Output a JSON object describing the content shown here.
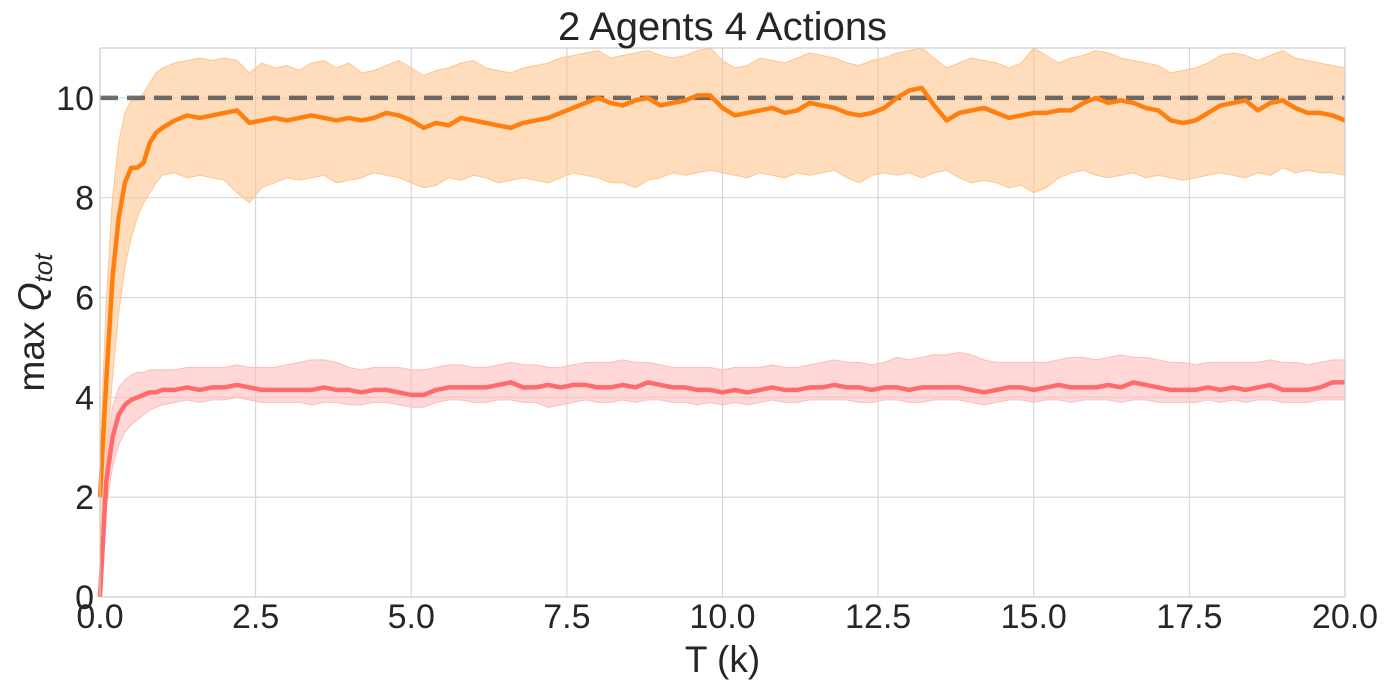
{
  "chart_data": {
    "type": "line",
    "title": "2 Agents 4 Actions",
    "xlabel": "T (k)",
    "ylabel_prefix": "max ",
    "ylabel_symbol": "Q",
    "ylabel_subscript": "tot",
    "xlim": [
      0,
      20
    ],
    "ylim": [
      0,
      11
    ],
    "xticks": [
      0,
      2.5,
      5,
      7.5,
      10,
      12.5,
      15,
      17.5,
      20
    ],
    "xtick_labels": [
      "0.0",
      "2.5",
      "5.0",
      "7.5",
      "10.0",
      "12.5",
      "15.0",
      "17.5",
      "20.0"
    ],
    "yticks": [
      0,
      2,
      4,
      6,
      8,
      10
    ],
    "ytick_labels": [
      "0",
      "2",
      "4",
      "6",
      "8",
      "10"
    ],
    "grid": true,
    "reference_line": {
      "y": 10,
      "style": "dashed",
      "color": "#555555"
    },
    "series": [
      {
        "color": "#ff7f0e",
        "band_color": "#ffc58f",
        "x": [
          0,
          0.1,
          0.2,
          0.3,
          0.4,
          0.5,
          0.6,
          0.7,
          0.8,
          0.9,
          1.0,
          1.2,
          1.4,
          1.6,
          1.8,
          2.0,
          2.2,
          2.4,
          2.6,
          2.8,
          3.0,
          3.2,
          3.4,
          3.6,
          3.8,
          4.0,
          4.2,
          4.4,
          4.6,
          4.8,
          5.0,
          5.2,
          5.4,
          5.6,
          5.8,
          6.0,
          6.2,
          6.4,
          6.6,
          6.8,
          7.0,
          7.2,
          7.4,
          7.6,
          7.8,
          8.0,
          8.2,
          8.4,
          8.6,
          8.8,
          9.0,
          9.2,
          9.4,
          9.6,
          9.8,
          10.0,
          10.2,
          10.4,
          10.6,
          10.8,
          11.0,
          11.2,
          11.4,
          11.6,
          11.8,
          12.0,
          12.2,
          12.4,
          12.6,
          12.8,
          13.0,
          13.2,
          13.4,
          13.6,
          13.8,
          14.0,
          14.2,
          14.4,
          14.6,
          14.8,
          15.0,
          15.2,
          15.4,
          15.6,
          15.8,
          16.0,
          16.2,
          16.4,
          16.6,
          16.8,
          17.0,
          17.2,
          17.4,
          17.6,
          17.8,
          18.0,
          18.2,
          18.4,
          18.6,
          18.8,
          19.0,
          19.2,
          19.4,
          19.6,
          19.8,
          20.0
        ],
        "mean": [
          2.0,
          4.3,
          6.4,
          7.6,
          8.3,
          8.6,
          8.6,
          8.7,
          9.1,
          9.3,
          9.4,
          9.55,
          9.65,
          9.6,
          9.65,
          9.7,
          9.75,
          9.5,
          9.55,
          9.6,
          9.55,
          9.6,
          9.65,
          9.6,
          9.55,
          9.6,
          9.55,
          9.6,
          9.7,
          9.65,
          9.55,
          9.4,
          9.5,
          9.45,
          9.6,
          9.55,
          9.5,
          9.45,
          9.4,
          9.5,
          9.55,
          9.6,
          9.7,
          9.8,
          9.9,
          10.0,
          9.9,
          9.85,
          9.95,
          10.0,
          9.85,
          9.9,
          9.95,
          10.05,
          10.05,
          9.8,
          9.65,
          9.7,
          9.75,
          9.8,
          9.7,
          9.75,
          9.9,
          9.85,
          9.8,
          9.7,
          9.65,
          9.7,
          9.8,
          10.0,
          10.15,
          10.2,
          9.85,
          9.55,
          9.7,
          9.75,
          9.8,
          9.7,
          9.6,
          9.65,
          9.7,
          9.7,
          9.75,
          9.75,
          9.9,
          10.0,
          9.9,
          9.95,
          9.9,
          9.8,
          9.75,
          9.55,
          9.5,
          9.55,
          9.7,
          9.85,
          9.9,
          9.95,
          9.75,
          9.9,
          9.95,
          9.8,
          9.7,
          9.7,
          9.65,
          9.55
        ],
        "lower": [
          1.2,
          2.7,
          4.4,
          5.7,
          6.6,
          7.2,
          7.6,
          7.9,
          8.1,
          8.3,
          8.45,
          8.5,
          8.4,
          8.45,
          8.4,
          8.35,
          8.1,
          7.9,
          8.2,
          8.3,
          8.4,
          8.35,
          8.4,
          8.45,
          8.3,
          8.35,
          8.4,
          8.5,
          8.45,
          8.4,
          8.3,
          8.2,
          8.25,
          8.4,
          8.35,
          8.45,
          8.4,
          8.3,
          8.35,
          8.4,
          8.35,
          8.3,
          8.4,
          8.5,
          8.45,
          8.4,
          8.3,
          8.3,
          8.2,
          8.35,
          8.4,
          8.5,
          8.45,
          8.5,
          8.55,
          8.5,
          8.45,
          8.4,
          8.5,
          8.45,
          8.4,
          8.5,
          8.45,
          8.5,
          8.55,
          8.4,
          8.3,
          8.45,
          8.5,
          8.45,
          8.5,
          8.4,
          8.5,
          8.55,
          8.4,
          8.3,
          8.35,
          8.3,
          8.2,
          8.25,
          8.1,
          8.2,
          8.4,
          8.5,
          8.55,
          8.45,
          8.4,
          8.45,
          8.5,
          8.4,
          8.45,
          8.4,
          8.35,
          8.4,
          8.45,
          8.5,
          8.45,
          8.4,
          8.5,
          8.45,
          8.6,
          8.5,
          8.55,
          8.5,
          8.5,
          8.45
        ],
        "upper": [
          2.8,
          5.9,
          8.0,
          9.1,
          9.7,
          9.95,
          9.95,
          10.1,
          10.3,
          10.5,
          10.6,
          10.7,
          10.75,
          10.8,
          10.75,
          10.8,
          10.75,
          10.5,
          10.7,
          10.6,
          10.65,
          10.55,
          10.7,
          10.75,
          10.6,
          10.7,
          10.5,
          10.55,
          10.65,
          10.75,
          10.6,
          10.45,
          10.55,
          10.6,
          10.7,
          10.75,
          10.6,
          10.55,
          10.5,
          10.6,
          10.65,
          10.7,
          10.8,
          10.85,
          10.9,
          10.95,
          10.8,
          10.85,
          10.9,
          10.95,
          10.85,
          10.8,
          10.85,
          10.95,
          11.0,
          10.75,
          10.6,
          10.65,
          10.8,
          10.75,
          10.7,
          10.8,
          10.9,
          10.85,
          10.8,
          10.7,
          10.65,
          10.75,
          10.8,
          10.9,
          10.95,
          11.0,
          10.8,
          10.6,
          10.7,
          10.8,
          10.75,
          10.7,
          10.6,
          10.7,
          11.0,
          10.85,
          10.7,
          10.8,
          10.85,
          10.95,
          10.9,
          10.8,
          10.75,
          10.7,
          10.65,
          10.5,
          10.55,
          10.6,
          10.7,
          10.85,
          10.9,
          10.85,
          10.75,
          10.85,
          10.95,
          10.8,
          10.75,
          10.7,
          10.65,
          10.6
        ]
      },
      {
        "color": "#ff6b6b",
        "band_color": "#ffbcbc",
        "x": [
          0,
          0.1,
          0.2,
          0.3,
          0.4,
          0.5,
          0.6,
          0.7,
          0.8,
          0.9,
          1.0,
          1.2,
          1.4,
          1.6,
          1.8,
          2.0,
          2.2,
          2.4,
          2.6,
          2.8,
          3.0,
          3.2,
          3.4,
          3.6,
          3.8,
          4.0,
          4.2,
          4.4,
          4.6,
          4.8,
          5.0,
          5.2,
          5.4,
          5.6,
          5.8,
          6.0,
          6.2,
          6.4,
          6.6,
          6.8,
          7.0,
          7.2,
          7.4,
          7.6,
          7.8,
          8.0,
          8.2,
          8.4,
          8.6,
          8.8,
          9.0,
          9.2,
          9.4,
          9.6,
          9.8,
          10.0,
          10.2,
          10.4,
          10.6,
          10.8,
          11.0,
          11.2,
          11.4,
          11.6,
          11.8,
          12.0,
          12.2,
          12.4,
          12.6,
          12.8,
          13.0,
          13.2,
          13.4,
          13.6,
          13.8,
          14.0,
          14.2,
          14.4,
          14.6,
          14.8,
          15.0,
          15.2,
          15.4,
          15.6,
          15.8,
          16.0,
          16.2,
          16.4,
          16.6,
          16.8,
          17.0,
          17.2,
          17.4,
          17.6,
          17.8,
          18.0,
          18.2,
          18.4,
          18.6,
          18.8,
          19.0,
          19.2,
          19.4,
          19.6,
          19.8,
          20.0
        ],
        "mean": [
          0.0,
          2.3,
          3.2,
          3.65,
          3.85,
          3.95,
          4.0,
          4.05,
          4.1,
          4.1,
          4.15,
          4.15,
          4.2,
          4.15,
          4.2,
          4.2,
          4.25,
          4.2,
          4.15,
          4.15,
          4.15,
          4.15,
          4.15,
          4.2,
          4.15,
          4.15,
          4.1,
          4.15,
          4.15,
          4.1,
          4.05,
          4.05,
          4.15,
          4.2,
          4.2,
          4.2,
          4.2,
          4.25,
          4.3,
          4.2,
          4.2,
          4.25,
          4.2,
          4.25,
          4.25,
          4.2,
          4.2,
          4.25,
          4.2,
          4.3,
          4.25,
          4.2,
          4.2,
          4.15,
          4.15,
          4.1,
          4.15,
          4.1,
          4.15,
          4.2,
          4.15,
          4.15,
          4.2,
          4.2,
          4.25,
          4.2,
          4.2,
          4.15,
          4.2,
          4.2,
          4.15,
          4.2,
          4.2,
          4.2,
          4.2,
          4.15,
          4.1,
          4.15,
          4.2,
          4.2,
          4.15,
          4.2,
          4.25,
          4.2,
          4.2,
          4.2,
          4.25,
          4.2,
          4.3,
          4.25,
          4.2,
          4.15,
          4.15,
          4.15,
          4.2,
          4.15,
          4.2,
          4.15,
          4.2,
          4.25,
          4.15,
          4.15,
          4.15,
          4.2,
          4.3,
          4.3
        ],
        "lower": [
          0.0,
          1.8,
          2.6,
          3.05,
          3.3,
          3.45,
          3.55,
          3.65,
          3.75,
          3.8,
          3.85,
          3.9,
          3.95,
          3.9,
          3.95,
          3.95,
          4.0,
          3.95,
          3.9,
          3.9,
          3.9,
          3.9,
          3.85,
          3.9,
          3.9,
          3.85,
          3.85,
          3.9,
          3.9,
          3.85,
          3.8,
          3.8,
          3.9,
          3.95,
          3.95,
          3.9,
          3.9,
          3.95,
          3.95,
          3.9,
          3.9,
          3.8,
          3.85,
          3.9,
          3.95,
          3.9,
          3.9,
          3.95,
          3.9,
          3.95,
          3.95,
          3.9,
          3.9,
          3.85,
          3.9,
          3.85,
          3.9,
          3.85,
          3.9,
          3.95,
          3.9,
          3.9,
          3.95,
          3.95,
          3.95,
          3.95,
          3.9,
          3.9,
          3.95,
          3.95,
          3.9,
          3.9,
          3.95,
          3.95,
          3.95,
          3.9,
          3.85,
          3.9,
          3.95,
          3.95,
          3.9,
          3.95,
          3.95,
          3.9,
          3.95,
          3.95,
          3.95,
          3.9,
          3.95,
          3.95,
          3.9,
          3.9,
          3.9,
          3.9,
          3.95,
          3.9,
          3.95,
          3.9,
          3.95,
          3.95,
          3.9,
          3.9,
          3.9,
          3.95,
          3.95,
          3.95
        ],
        "upper": [
          0.9,
          2.8,
          3.8,
          4.2,
          4.35,
          4.45,
          4.5,
          4.5,
          4.55,
          4.55,
          4.55,
          4.55,
          4.6,
          4.6,
          4.6,
          4.6,
          4.65,
          4.6,
          4.6,
          4.6,
          4.65,
          4.7,
          4.75,
          4.75,
          4.7,
          4.6,
          4.55,
          4.6,
          4.6,
          4.6,
          4.55,
          4.55,
          4.6,
          4.65,
          4.65,
          4.6,
          4.6,
          4.65,
          4.7,
          4.65,
          4.65,
          4.6,
          4.6,
          4.65,
          4.7,
          4.7,
          4.7,
          4.75,
          4.7,
          4.7,
          4.65,
          4.6,
          4.6,
          4.6,
          4.6,
          4.55,
          4.6,
          4.6,
          4.6,
          4.65,
          4.6,
          4.6,
          4.65,
          4.7,
          4.75,
          4.7,
          4.7,
          4.65,
          4.7,
          4.8,
          4.75,
          4.8,
          4.85,
          4.85,
          4.9,
          4.85,
          4.75,
          4.7,
          4.7,
          4.7,
          4.7,
          4.7,
          4.75,
          4.8,
          4.8,
          4.75,
          4.8,
          4.85,
          4.8,
          4.8,
          4.75,
          4.7,
          4.7,
          4.65,
          4.7,
          4.7,
          4.7,
          4.7,
          4.7,
          4.75,
          4.7,
          4.7,
          4.65,
          4.7,
          4.75,
          4.75
        ]
      }
    ]
  }
}
